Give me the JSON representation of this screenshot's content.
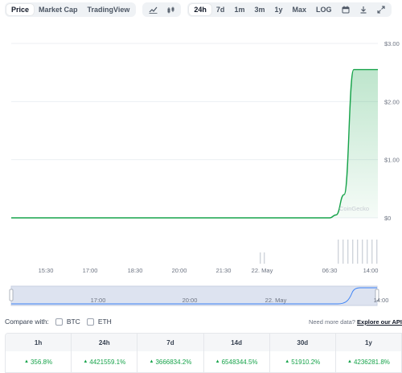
{
  "toolbar": {
    "view_tabs": [
      {
        "label": "Price",
        "active": true
      },
      {
        "label": "Market Cap",
        "active": false
      },
      {
        "label": "TradingView",
        "active": false
      }
    ],
    "chart_type_icons": [
      "line-chart-icon",
      "candlestick-icon"
    ],
    "range_tabs": [
      {
        "label": "24h",
        "active": true
      },
      {
        "label": "7d",
        "active": false
      },
      {
        "label": "1m",
        "active": false
      },
      {
        "label": "3m",
        "active": false
      },
      {
        "label": "1y",
        "active": false
      },
      {
        "label": "Max",
        "active": false
      },
      {
        "label": "LOG",
        "active": false
      }
    ],
    "tool_icons": [
      "calendar-icon",
      "download-icon",
      "expand-icon"
    ]
  },
  "watermark": "CoinGecko",
  "chart_data": {
    "type": "area",
    "y_ticks": [
      "$3.00",
      "$2.00",
      "$1.00",
      "$0"
    ],
    "ylim": [
      0,
      3
    ],
    "x_ticks": [
      "15:30",
      "17:00",
      "18:30",
      "20:00",
      "21:30",
      "22. May",
      "06:30",
      "14:00"
    ],
    "series": [
      {
        "x": [
          "15:30",
          "17:00",
          "18:30",
          "20:00",
          "21:30",
          "22. May",
          "04:00",
          "05:30",
          "06:30",
          "07:00",
          "07:30",
          "08:00",
          "09:00",
          "14:00"
        ],
        "values": [
          0,
          0,
          0,
          0,
          0,
          0,
          0,
          0,
          0,
          0.05,
          0.4,
          2.55,
          2.55,
          2.55
        ],
        "color": "#16a34a"
      }
    ],
    "volume_note": "volume bars near end of range",
    "grid": true
  },
  "navigator": {
    "labels": [
      "17:00",
      "20:00",
      "22. May",
      "14:00"
    ]
  },
  "compare": {
    "label": "Compare with:",
    "options": [
      "BTC",
      "ETH"
    ],
    "api_text": "Need more data?",
    "api_link": "Explore our API"
  },
  "performance": [
    {
      "period": "1h",
      "change": "356.8%"
    },
    {
      "period": "24h",
      "change": "4421559.1%"
    },
    {
      "period": "7d",
      "change": "3666834.2%"
    },
    {
      "period": "14d",
      "change": "6548344.5%"
    },
    {
      "period": "30d",
      "change": "51910.2%"
    },
    {
      "period": "1y",
      "change": "4236281.8%"
    }
  ],
  "colors": {
    "up": "#16a34a",
    "accent_fill": "#dcfce7",
    "navigator_fill": "#dde3f0"
  }
}
